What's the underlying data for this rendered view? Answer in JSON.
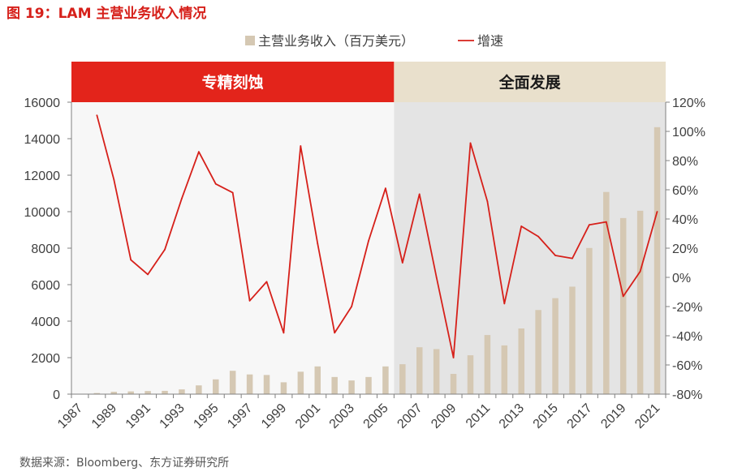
{
  "header": {
    "figure_title": "图 19：LAM 主营业务收入情况"
  },
  "footer": {
    "source": "数据来源：Bloomberg、东方证券研究所"
  },
  "colors": {
    "bar": "#d5c8b3",
    "line": "#d6201a",
    "band_left": "#e3241b",
    "band_right": "#e9e0cc",
    "bg_left": "#f7f7f7",
    "bg_right": "#e4e4e4"
  },
  "chart_data": {
    "type": "bar",
    "title": "",
    "xlabel": "",
    "ylabel": "",
    "y2label": "",
    "legend_position": "top-center",
    "grid": false,
    "periods": [
      {
        "label": "专精刻蚀",
        "from": 1987,
        "to": 2005
      },
      {
        "label": "全面发展",
        "from": 2006,
        "to": 2021
      }
    ],
    "categories": [
      "1987",
      "1988",
      "1989",
      "1990",
      "1991",
      "1992",
      "1993",
      "1994",
      "1995",
      "1996",
      "1997",
      "1998",
      "1999",
      "2000",
      "2001",
      "2002",
      "2003",
      "2004",
      "2005",
      "2006",
      "2007",
      "2008",
      "2009",
      "2010",
      "2011",
      "2012",
      "2013",
      "2014",
      "2015",
      "2016",
      "2017",
      "2018",
      "2019",
      "2020",
      "2021"
    ],
    "x_tick_labels": [
      "1987",
      "1989",
      "1991",
      "1993",
      "1995",
      "1997",
      "1999",
      "2001",
      "2003",
      "2005",
      "2007",
      "2009",
      "2011",
      "2013",
      "2015",
      "2017",
      "2019",
      "2021"
    ],
    "ylim": [
      0,
      16000
    ],
    "y_ticks": [
      "0",
      "2000",
      "4000",
      "6000",
      "8000",
      "10000",
      "12000",
      "14000",
      "16000"
    ],
    "y2lim": [
      -80,
      120
    ],
    "y2_ticks": [
      "-80%",
      "-60%",
      "-40%",
      "-20%",
      "0%",
      "20%",
      "40%",
      "60%",
      "80%",
      "100%",
      "120%"
    ],
    "series": [
      {
        "name": "主营业务收入（百万美元）",
        "type": "bar",
        "axis": "left",
        "values": [
          0,
          60,
          130,
          150,
          170,
          180,
          260,
          480,
          810,
          1280,
          1080,
          1050,
          650,
          1230,
          1520,
          940,
          750,
          940,
          1520,
          1640,
          2570,
          2470,
          1110,
          2130,
          3240,
          2670,
          3600,
          4610,
          5260,
          5890,
          8010,
          11080,
          9650,
          10050,
          14630
        ]
      },
      {
        "name": "增速",
        "type": "line",
        "axis": "right",
        "values": [
          null,
          111,
          67,
          12,
          2,
          19,
          54,
          86,
          64,
          58,
          -16,
          -3,
          -38,
          90,
          23,
          -38,
          -20,
          25,
          61,
          10,
          57,
          0,
          -55,
          92,
          52,
          -18,
          35,
          28,
          15,
          13,
          36,
          38,
          -13,
          4,
          45
        ]
      }
    ]
  }
}
